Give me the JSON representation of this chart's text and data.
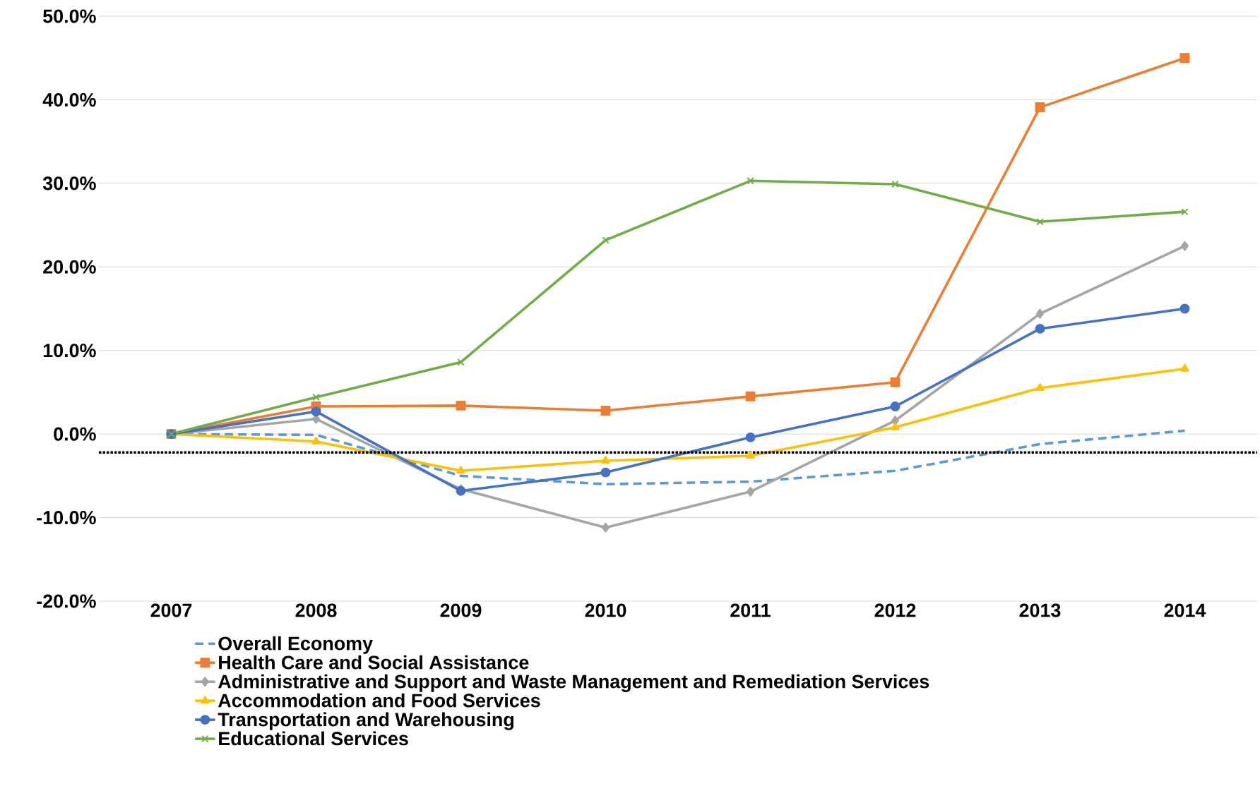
{
  "chart_data": {
    "type": "line",
    "categories": [
      "2007",
      "2008",
      "2009",
      "2010",
      "2011",
      "2012",
      "2013",
      "2014"
    ],
    "series": [
      {
        "name": "Overall Economy",
        "color": "#5b9bd5",
        "line_style": "dashed",
        "marker": "none",
        "values": [
          0,
          -0.1,
          -5.0,
          -6.0,
          -5.7,
          -4.4,
          -1.2,
          0.4
        ]
      },
      {
        "name": "Health Care and Social Assistance",
        "color": "#ed7d31",
        "line_style": "solid",
        "marker": "square",
        "values": [
          0,
          3.3,
          3.4,
          2.8,
          4.5,
          6.2,
          39.1,
          45.0
        ]
      },
      {
        "name": "Administrative and Support and Waste Management and Remediation Services",
        "color": "#a5a5a5",
        "line_style": "solid",
        "marker": "diamond",
        "values": [
          0,
          1.8,
          -6.6,
          -11.2,
          -6.9,
          1.6,
          14.4,
          22.5
        ]
      },
      {
        "name": "Accommodation and Food Services",
        "color": "#ffc000",
        "line_style": "solid",
        "marker": "triangle",
        "values": [
          0,
          -0.9,
          -4.4,
          -3.2,
          -2.6,
          0.8,
          5.5,
          7.8
        ]
      },
      {
        "name": "Transportation and Warehousing",
        "color": "#4472c4",
        "line_style": "solid",
        "marker": "circle",
        "values": [
          0,
          2.7,
          -6.8,
          -4.6,
          -0.4,
          3.3,
          12.6,
          15.0
        ]
      },
      {
        "name": "Educational Services",
        "color": "#70ad47",
        "line_style": "solid",
        "marker": "cross",
        "values": [
          0,
          4.4,
          8.6,
          23.2,
          30.3,
          29.9,
          25.4,
          26.6
        ]
      }
    ],
    "ylim": [
      -20,
      50
    ],
    "yticks": [
      {
        "value": -20,
        "label": "-20.0%"
      },
      {
        "value": -10,
        "label": "-10.0%"
      },
      {
        "value": 0,
        "label": "0.0%"
      },
      {
        "value": 10,
        "label": "10.0%"
      },
      {
        "value": 20,
        "label": "20.0%"
      },
      {
        "value": 30,
        "label": "30.0%"
      },
      {
        "value": 40,
        "label": "40.0%"
      },
      {
        "value": 50,
        "label": "50.0%"
      }
    ],
    "ref_lines": [
      {
        "axis": "y",
        "value": -2.2,
        "color": "#000000",
        "line_style": "dotted"
      }
    ],
    "grid": "y",
    "legend": "bottom"
  }
}
